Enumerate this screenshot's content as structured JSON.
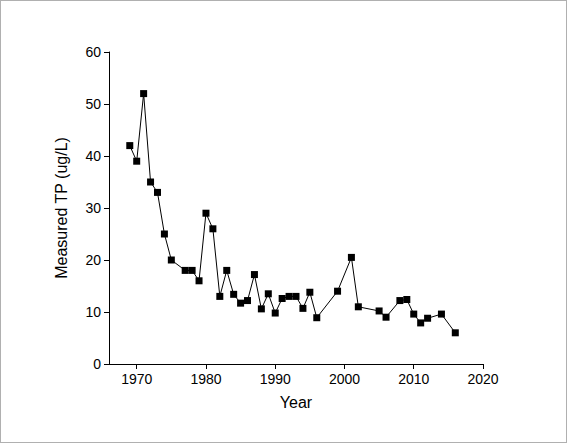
{
  "chart_data": {
    "type": "line",
    "xlabel": "Year",
    "ylabel": "Measured TP (ug/L)",
    "x": [
      1969,
      1970,
      1971,
      1972,
      1973,
      1974,
      1975,
      1977,
      1978,
      1979,
      1980,
      1981,
      1982,
      1983,
      1984,
      1985,
      1986,
      1987,
      1988,
      1989,
      1990,
      1991,
      1992,
      1993,
      1994,
      1995,
      1996,
      1999,
      2001,
      2002,
      2005,
      2006,
      2008,
      2009,
      2010,
      2011,
      2012,
      2014,
      2016
    ],
    "values": [
      42,
      39,
      52,
      35,
      33,
      25,
      20,
      18,
      18,
      16,
      29,
      26,
      13,
      18,
      13.4,
      11.7,
      12.2,
      17.2,
      10.6,
      13.5,
      9.8,
      12.6,
      13,
      13,
      10.7,
      13.8,
      8.9,
      14,
      20.5,
      11,
      10.2,
      9,
      12.2,
      12.4,
      9.6,
      7.9,
      8.8,
      9.6,
      6
    ],
    "color": "#000000",
    "marker": "square",
    "line_style": "solid",
    "xlim": [
      1966,
      2020
    ],
    "xticks": [
      1970,
      1980,
      1990,
      2000,
      2010,
      2020
    ],
    "ylim": [
      0,
      60
    ],
    "yticks": [
      0,
      10,
      20,
      30,
      40,
      50,
      60
    ],
    "grid": false
  }
}
